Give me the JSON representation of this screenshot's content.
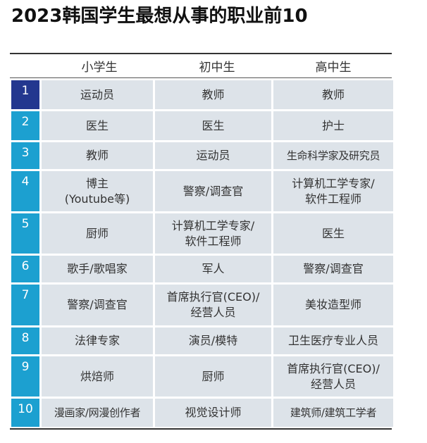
{
  "title": "2023韩国学生最想从事的职业前10",
  "table": {
    "headers": [
      "小学生",
      "初中生",
      "高中生"
    ],
    "rows": [
      {
        "rank": "1",
        "elementary": "运动员",
        "middle": "教师",
        "high": "教师"
      },
      {
        "rank": "2",
        "elementary": "医生",
        "middle": "医生",
        "high": "护士"
      },
      {
        "rank": "3",
        "elementary": "教师",
        "middle": "运动员",
        "high": "生命科学家及研究员"
      },
      {
        "rank": "4",
        "elementary": "博主\n(Youtube等)",
        "middle": "警察/调查官",
        "high": "计算机工学专家/\n软件工程师"
      },
      {
        "rank": "5",
        "elementary": "厨师",
        "middle": "计算机工学专家/\n软件工程师",
        "high": "医生"
      },
      {
        "rank": "6",
        "elementary": "歌手/歌唱家",
        "middle": "军人",
        "high": "警察/调查官"
      },
      {
        "rank": "7",
        "elementary": "警察/调查官",
        "middle": "首席执行官(CEO)/\n经营人员",
        "high": "美妆造型师"
      },
      {
        "rank": "8",
        "elementary": "法律专家",
        "middle": "演员/模特",
        "high": "卫生医疗专业人员"
      },
      {
        "rank": "9",
        "elementary": "烘焙师",
        "middle": "厨师",
        "high": "首席执行官(CEO)/\n经营人员"
      },
      {
        "rank": "10",
        "elementary": "漫画家/网漫创作者",
        "middle": "视觉设计师",
        "high": "建筑师/建筑工学者"
      }
    ]
  },
  "colors": {
    "rank_first": "#23378f",
    "rank_other": "#1ca0d0",
    "cell_background": "#dde3e9"
  }
}
